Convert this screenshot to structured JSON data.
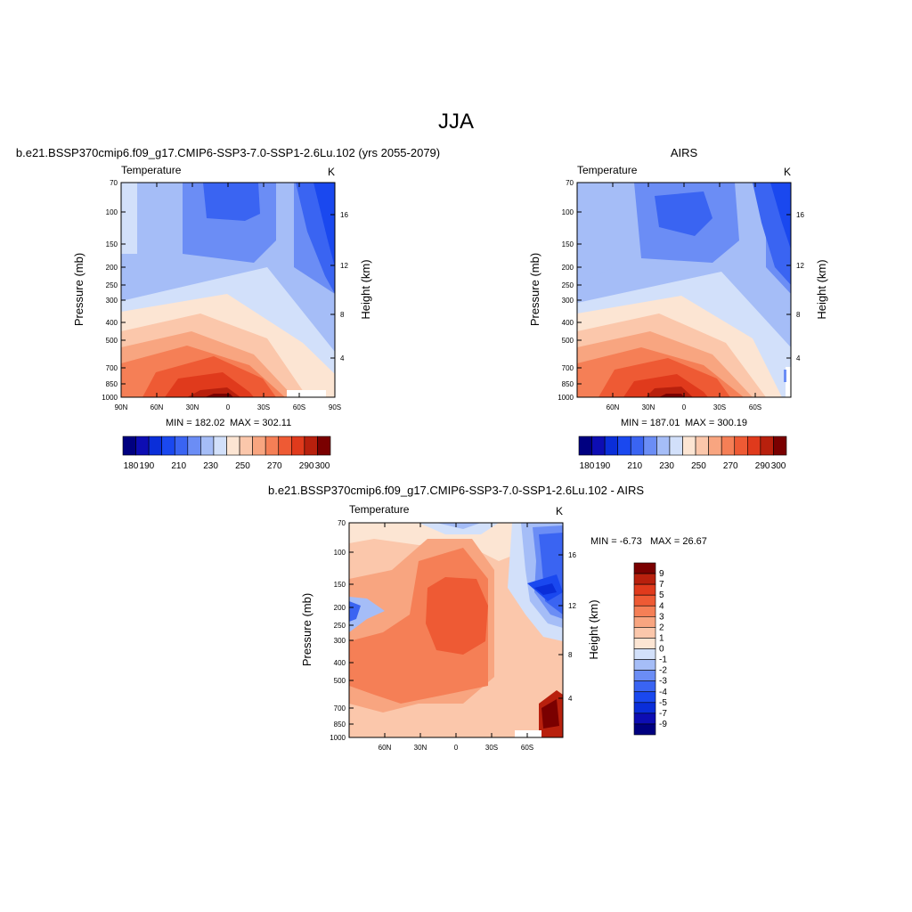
{
  "page_title": "JJA",
  "colors": {
    "cool": [
      "#000080",
      "#0d0db3",
      "#0a2ed9",
      "#1a48ef",
      "#3a64f2",
      "#6b8df5",
      "#a5bdf7",
      "#d2e0fa"
    ],
    "warm": [
      "#fce5d3",
      "#fbc7ab",
      "#f8a580",
      "#f57f56",
      "#ee5a34",
      "#e03a1c",
      "#b8200d",
      "#7a0000"
    ]
  },
  "chart_data": [
    {
      "type": "heatmap",
      "title": "b.e21.BSSP370cmip6.f09_g17.CMIP6-SSP3-7.0-SSP1-2.6Lu.102 (yrs 2055-2079)",
      "variable_label": "Temperature",
      "units": "K",
      "ylabel": "Pressure (mb)",
      "y2label": "Height (km)",
      "x_ticks": [
        "90N",
        "60N",
        "30N",
        "0",
        "30S",
        "60S",
        "90S"
      ],
      "y_ticks": [
        "70",
        "100",
        "150",
        "200",
        "250",
        "300",
        "400",
        "500",
        "700",
        "850",
        "1000"
      ],
      "y2_ticks": [
        "4",
        "8",
        "12",
        "16"
      ],
      "min_label": "MIN = 182.02",
      "max_label": "MAX = 302.11",
      "colorbar_labels": [
        "180",
        "190",
        "210",
        "230",
        "250",
        "270",
        "290",
        "300"
      ],
      "pressure_levels": [
        70,
        100,
        150,
        200,
        250,
        300,
        400,
        500,
        700,
        850,
        1000
      ],
      "height_ticks_km": [
        4,
        8,
        12,
        16
      ],
      "latitudes": [
        90,
        60,
        30,
        0,
        -30,
        -60,
        -90
      ],
      "colorbar_ticks": [
        180,
        190,
        210,
        230,
        250,
        270,
        290,
        300
      ],
      "colorbar_range": [
        175,
        305
      ],
      "min": 182.02,
      "max": 302.11
    },
    {
      "type": "heatmap",
      "title": "AIRS",
      "variable_label": "Temperature",
      "units": "K",
      "ylabel": "Pressure (mb)",
      "y2label": "Height (km)",
      "x_ticks": [
        "60N",
        "30N",
        "0",
        "30S",
        "60S"
      ],
      "y_ticks": [
        "70",
        "100",
        "150",
        "200",
        "250",
        "300",
        "400",
        "500",
        "700",
        "850",
        "1000"
      ],
      "y2_ticks": [
        "4",
        "8",
        "12",
        "16"
      ],
      "min_label": "MIN = 187.01",
      "max_label": "MAX = 300.19",
      "colorbar_labels": [
        "180",
        "190",
        "210",
        "230",
        "250",
        "270",
        "290",
        "300"
      ],
      "pressure_levels": [
        70,
        100,
        150,
        200,
        250,
        300,
        400,
        500,
        700,
        850,
        1000
      ],
      "height_ticks_km": [
        4,
        8,
        12,
        16
      ],
      "latitudes": [
        60,
        30,
        0,
        -30,
        -60
      ],
      "colorbar_ticks": [
        180,
        190,
        210,
        230,
        250,
        270,
        290,
        300
      ],
      "colorbar_range": [
        175,
        305
      ],
      "min": 187.01,
      "max": 300.19
    },
    {
      "type": "heatmap",
      "title": "b.e21.BSSP370cmip6.f09_g17.CMIP6-SSP3-7.0-SSP1-2.6Lu.102 - AIRS",
      "variable_label": "Temperature",
      "units": "K",
      "ylabel": "Pressure (mb)",
      "y2label": "Height (km)",
      "x_ticks": [
        "60N",
        "30N",
        "0",
        "30S",
        "60S"
      ],
      "y_ticks": [
        "70",
        "100",
        "150",
        "200",
        "250",
        "300",
        "400",
        "500",
        "700",
        "850",
        "1000"
      ],
      "y2_ticks": [
        "4",
        "8",
        "12",
        "16"
      ],
      "min_label": "MIN =  -6.73",
      "max_label": "MAX =  26.67",
      "colorbar_labels": [
        "9",
        "7",
        "5",
        "4",
        "3",
        "2",
        "1",
        "0",
        "-1",
        "-2",
        "-3",
        "-4",
        "-5",
        "-7",
        "-9"
      ],
      "pressure_levels": [
        70,
        100,
        150,
        200,
        250,
        300,
        400,
        500,
        700,
        850,
        1000
      ],
      "height_ticks_km": [
        4,
        8,
        12,
        16
      ],
      "latitudes": [
        60,
        30,
        0,
        -30,
        -60
      ],
      "colorbar_levels": [
        9,
        7,
        5,
        4,
        3,
        2,
        1,
        0,
        -1,
        -2,
        -3,
        -4,
        -5,
        -7,
        -9
      ],
      "min": -6.73,
      "max": 26.67
    }
  ]
}
